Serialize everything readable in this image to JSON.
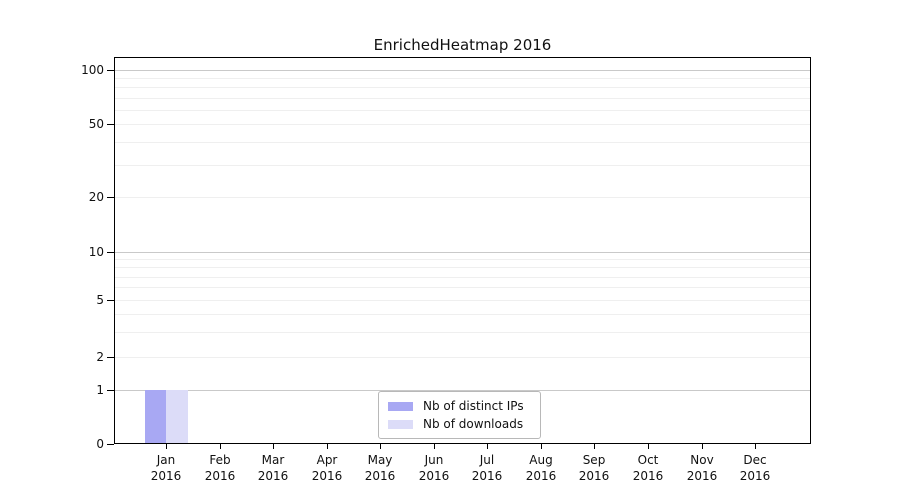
{
  "window": {
    "background": "#ffffff"
  },
  "chart_data": {
    "type": "bar",
    "title": "EnrichedHeatmap 2016",
    "categories": [
      "Jan 2016",
      "Feb 2016",
      "Mar 2016",
      "Apr 2016",
      "May 2016",
      "Jun 2016",
      "Jul 2016",
      "Aug 2016",
      "Sep 2016",
      "Oct 2016",
      "Nov 2016",
      "Dec 2016"
    ],
    "x_axis": {
      "month_labels": [
        "Jan",
        "Feb",
        "Mar",
        "Apr",
        "May",
        "Jun",
        "Jul",
        "Aug",
        "Sep",
        "Oct",
        "Nov",
        "Dec"
      ],
      "year_label": "2016"
    },
    "series": [
      {
        "name": "Nb of distinct IPs",
        "color": "#a8a8f3",
        "values": [
          1,
          0,
          0,
          0,
          0,
          0,
          0,
          0,
          0,
          0,
          0,
          0
        ]
      },
      {
        "name": "Nb of downloads",
        "color": "#dcdcf8",
        "values": [
          1,
          0,
          0,
          0,
          0,
          0,
          0,
          0,
          0,
          0,
          0,
          0
        ]
      }
    ],
    "y_axis": {
      "scale": "log-with-zero",
      "ylim": [
        0,
        110
      ],
      "tick_values": [
        0,
        1,
        2,
        5,
        10,
        20,
        50,
        100
      ],
      "tick_labels": [
        "0",
        "1",
        "2",
        "5",
        "10",
        "20",
        "50",
        "100"
      ],
      "major_grid_values": [
        1,
        10,
        100
      ],
      "minor_grid_values": [
        2,
        3,
        4,
        5,
        6,
        7,
        8,
        9,
        20,
        30,
        40,
        50,
        60,
        70,
        80,
        90
      ]
    },
    "legend": {
      "position": "lower-center-inside",
      "entries": [
        "Nb of distinct IPs",
        "Nb of downloads"
      ]
    },
    "grid": "horizontal",
    "colors": {
      "bar_distinct_ips": "#a8a8f3",
      "bar_downloads": "#dcdcf8",
      "major_grid": "#c9c9c9",
      "minor_grid": "#efefef",
      "axis_spine": "#000000",
      "legend_border": "#b8b8b8",
      "text": "#1a1a1a"
    }
  }
}
